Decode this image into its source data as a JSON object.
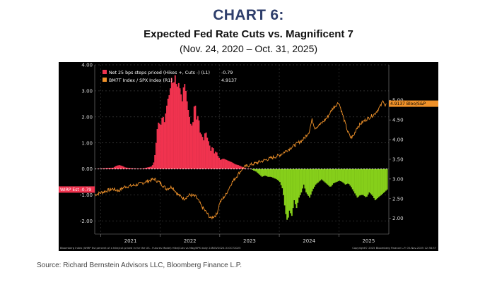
{
  "header": {
    "label": "CHART 6:",
    "title": "Expected Fed Rate Cuts vs. Magnificent 7",
    "subtitle": "(Nov. 24, 2020 – Oct. 31, 2025)"
  },
  "footer": {
    "source": "Source: Richard Bernstein Advisors LLC, Bloomberg Finance L.P."
  },
  "chart_data": {
    "type": "bar+line",
    "title": "Expected Fed Rate Cuts vs. Magnificent 7",
    "left_axis": {
      "range": [
        -2.5,
        4.0
      ],
      "ticks": [
        "4.00",
        "3.00",
        "2.00",
        "1.00",
        "0.00",
        "-1.00",
        "-2.00"
      ]
    },
    "right_axis": {
      "range": [
        1.6,
        5.9
      ],
      "ticks": [
        "5.00",
        "4.50",
        "4.00",
        "3.50",
        "3.00",
        "2.50",
        "2.00"
      ]
    },
    "x_axis": {
      "range": [
        2020.9,
        2025.84
      ],
      "labels": [
        "2021",
        "2022",
        "2023",
        "2024",
        "2025"
      ]
    },
    "legend": {
      "position": "top-left",
      "entries": [
        {
          "label": "Net 25 bps steps priced (Hikes +, Cuts -) (L1)",
          "value": "-0.79",
          "color": "#f0334f"
        },
        {
          "label": "BM7T Index / SPX Index (R1)",
          "value": "4.9137",
          "color": "#f0922a"
        }
      ]
    },
    "markers": {
      "left": {
        "text": "WIRP Est -0.79",
        "value": -0.79
      },
      "right": {
        "text": "4.9137 Bloo/S&P",
        "value": 4.9137
      }
    },
    "footer_left": "Bloomberg Index (WIRP Est percent of a hike/cut priced in for the US - Futures Model) Hike/Cuts vs Mag/SPX daily 24NOV2020-31OCT2025",
    "footer_right": "Copyright© 2025 Bloomberg Finance L.P.       05-Nov-2025 12:38:37",
    "series": [
      {
        "name": "Net 25 bps steps priced (Hikes +, Cuts -)",
        "kind": "bar",
        "points": [
          [
            2020.9,
            0.0
          ],
          [
            2021.0,
            0.02
          ],
          [
            2021.1,
            0.04
          ],
          [
            2021.2,
            0.05
          ],
          [
            2021.25,
            0.12
          ],
          [
            2021.3,
            0.15
          ],
          [
            2021.35,
            0.12
          ],
          [
            2021.4,
            0.06
          ],
          [
            2021.5,
            0.03
          ],
          [
            2021.6,
            0.02
          ],
          [
            2021.7,
            0.02
          ],
          [
            2021.85,
            0.1
          ],
          [
            2021.89,
            0.3
          ],
          [
            2021.92,
            1.0
          ],
          [
            2021.95,
            1.8
          ],
          [
            2022.0,
            1.7
          ],
          [
            2022.03,
            2.1
          ],
          [
            2022.06,
            1.8
          ],
          [
            2022.09,
            2.3
          ],
          [
            2022.12,
            2.7
          ],
          [
            2022.15,
            2.9
          ],
          [
            2022.18,
            3.5
          ],
          [
            2022.21,
            3.2
          ],
          [
            2022.24,
            3.6
          ],
          [
            2022.27,
            3.1
          ],
          [
            2022.3,
            3.3
          ],
          [
            2022.33,
            3.0
          ],
          [
            2022.36,
            2.6
          ],
          [
            2022.39,
            3.4
          ],
          [
            2022.42,
            3.0
          ],
          [
            2022.45,
            2.4
          ],
          [
            2022.48,
            2.0
          ],
          [
            2022.51,
            1.6
          ],
          [
            2022.54,
            1.8
          ],
          [
            2022.57,
            2.7
          ],
          [
            2022.6,
            1.9
          ],
          [
            2022.63,
            2.1
          ],
          [
            2022.66,
            1.4
          ],
          [
            2022.69,
            1.3
          ],
          [
            2022.72,
            1.1
          ],
          [
            2022.75,
            1.5
          ],
          [
            2022.78,
            1.2
          ],
          [
            2022.81,
            1.0
          ],
          [
            2022.84,
            0.7
          ],
          [
            2022.87,
            0.9
          ],
          [
            2022.9,
            0.6
          ],
          [
            2022.93,
            0.7
          ],
          [
            2022.96,
            0.5
          ],
          [
            2023.0,
            0.35
          ],
          [
            2023.05,
            0.4
          ],
          [
            2023.1,
            0.35
          ],
          [
            2023.15,
            0.3
          ],
          [
            2023.2,
            0.25
          ],
          [
            2023.25,
            0.18
          ],
          [
            2023.3,
            0.15
          ],
          [
            2023.35,
            0.1
          ],
          [
            2023.4,
            0.05
          ],
          [
            2023.45,
            0.0
          ],
          [
            2023.5,
            0.02
          ],
          [
            2023.55,
            -0.05
          ],
          [
            2023.6,
            -0.1
          ],
          [
            2023.65,
            -0.2
          ],
          [
            2023.7,
            -0.3
          ],
          [
            2023.75,
            -0.25
          ],
          [
            2023.8,
            -0.3
          ],
          [
            2023.85,
            -0.3
          ],
          [
            2023.9,
            -0.35
          ],
          [
            2023.95,
            -0.4
          ],
          [
            2024.0,
            -0.5
          ],
          [
            2024.05,
            -0.8
          ],
          [
            2024.08,
            -1.4
          ],
          [
            2024.11,
            -1.9
          ],
          [
            2024.13,
            -2.0
          ],
          [
            2024.16,
            -1.6
          ],
          [
            2024.2,
            -1.8
          ],
          [
            2024.24,
            -1.2
          ],
          [
            2024.28,
            -1.5
          ],
          [
            2024.32,
            -1.1
          ],
          [
            2024.36,
            -0.9
          ],
          [
            2024.4,
            -0.6
          ],
          [
            2024.44,
            -0.9
          ],
          [
            2024.5,
            -1.1
          ],
          [
            2024.55,
            -0.8
          ],
          [
            2024.6,
            -0.6
          ],
          [
            2024.65,
            -0.5
          ],
          [
            2024.7,
            -0.4
          ],
          [
            2024.75,
            -0.5
          ],
          [
            2024.8,
            -0.6
          ],
          [
            2024.85,
            -0.7
          ],
          [
            2024.9,
            -0.55
          ],
          [
            2024.95,
            -0.5
          ],
          [
            2025.0,
            -0.45
          ],
          [
            2025.05,
            -0.5
          ],
          [
            2025.1,
            -0.6
          ],
          [
            2025.15,
            -0.55
          ],
          [
            2025.2,
            -0.7
          ],
          [
            2025.25,
            -0.9
          ],
          [
            2025.3,
            -1.1
          ],
          [
            2025.35,
            -1.0
          ],
          [
            2025.4,
            -1.0
          ],
          [
            2025.45,
            -1.1
          ],
          [
            2025.5,
            -0.9
          ],
          [
            2025.55,
            -1.0
          ],
          [
            2025.6,
            -1.2
          ],
          [
            2025.65,
            -1.1
          ],
          [
            2025.7,
            -1.0
          ],
          [
            2025.75,
            -0.9
          ],
          [
            2025.8,
            -0.79
          ]
        ]
      },
      {
        "name": "BM7T Index / SPX Index",
        "kind": "line",
        "points": [
          [
            2020.9,
            2.6
          ],
          [
            2021.0,
            2.65
          ],
          [
            2021.1,
            2.7
          ],
          [
            2021.2,
            2.75
          ],
          [
            2021.3,
            2.7
          ],
          [
            2021.4,
            2.8
          ],
          [
            2021.5,
            2.82
          ],
          [
            2021.6,
            2.85
          ],
          [
            2021.7,
            2.9
          ],
          [
            2021.8,
            2.95
          ],
          [
            2021.9,
            3.0
          ],
          [
            2022.0,
            2.9
          ],
          [
            2022.1,
            2.75
          ],
          [
            2022.2,
            2.8
          ],
          [
            2022.3,
            2.6
          ],
          [
            2022.4,
            2.5
          ],
          [
            2022.5,
            2.6
          ],
          [
            2022.6,
            2.55
          ],
          [
            2022.7,
            2.3
          ],
          [
            2022.8,
            2.1
          ],
          [
            2022.85,
            2.0
          ],
          [
            2022.9,
            2.05
          ],
          [
            2022.95,
            2.1
          ],
          [
            2023.0,
            2.4
          ],
          [
            2023.1,
            2.6
          ],
          [
            2023.2,
            2.9
          ],
          [
            2023.3,
            3.1
          ],
          [
            2023.4,
            3.3
          ],
          [
            2023.5,
            3.35
          ],
          [
            2023.6,
            3.4
          ],
          [
            2023.7,
            3.45
          ],
          [
            2023.8,
            3.5
          ],
          [
            2023.9,
            3.55
          ],
          [
            2024.0,
            3.6
          ],
          [
            2024.1,
            3.7
          ],
          [
            2024.2,
            3.8
          ],
          [
            2024.3,
            3.9
          ],
          [
            2024.4,
            4.0
          ],
          [
            2024.5,
            4.2
          ],
          [
            2024.55,
            4.5
          ],
          [
            2024.6,
            4.3
          ],
          [
            2024.7,
            4.4
          ],
          [
            2024.8,
            4.55
          ],
          [
            2024.9,
            4.8
          ],
          [
            2025.0,
            4.95
          ],
          [
            2025.05,
            4.7
          ],
          [
            2025.1,
            4.45
          ],
          [
            2025.15,
            4.2
          ],
          [
            2025.2,
            4.05
          ],
          [
            2025.25,
            4.1
          ],
          [
            2025.3,
            4.3
          ],
          [
            2025.4,
            4.45
          ],
          [
            2025.5,
            4.55
          ],
          [
            2025.6,
            4.65
          ],
          [
            2025.7,
            4.85
          ],
          [
            2025.75,
            5.0
          ],
          [
            2025.78,
            4.85
          ],
          [
            2025.8,
            4.91
          ]
        ]
      }
    ]
  }
}
